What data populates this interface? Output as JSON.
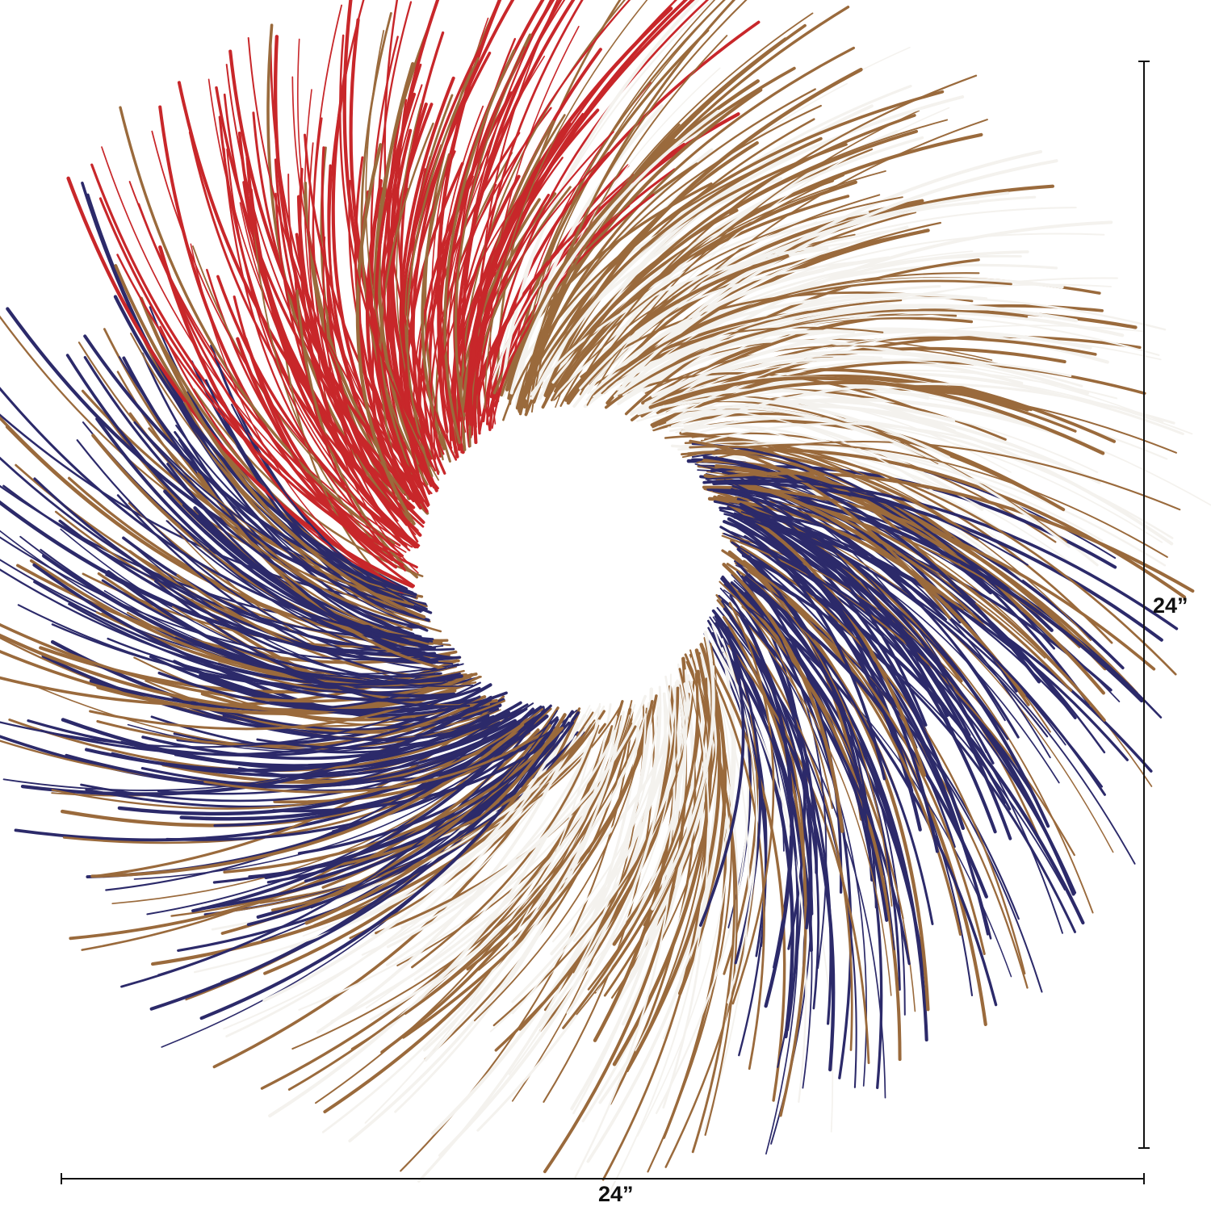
{
  "product": {
    "height_label": "24”",
    "width_label": "24”"
  },
  "colors": {
    "red": "#c8272a",
    "white": "#f4f2ee",
    "brown": "#9a6a3c",
    "navy": "#2c2a6a",
    "background": "#ffffff"
  }
}
